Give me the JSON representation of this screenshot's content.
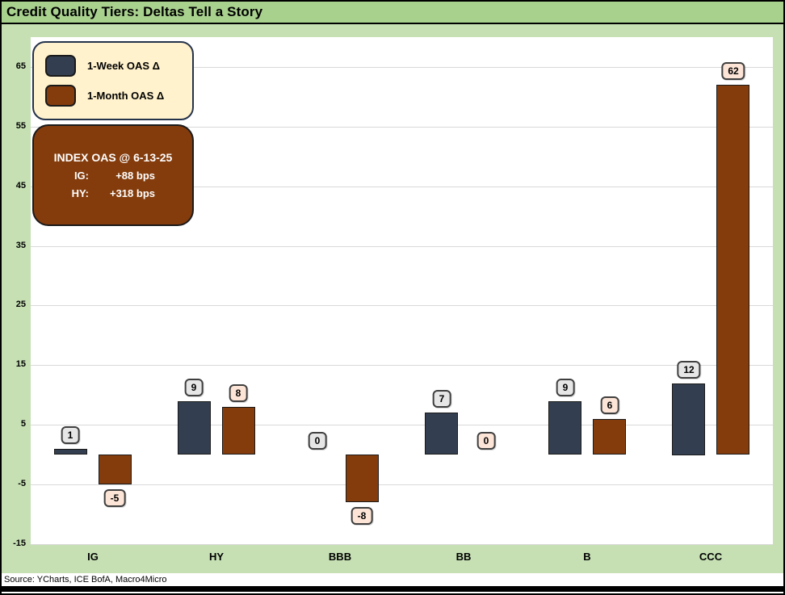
{
  "window": {
    "title": "Credit Quality Tiers: Deltas Tell a Story"
  },
  "legend": {
    "items": [
      {
        "label": "1-Week OAS Δ",
        "color": "#333F50"
      },
      {
        "label": "1-Month OAS Δ",
        "color": "#843C0C"
      }
    ]
  },
  "callout": {
    "header": "INDEX OAS @ 6-13-25",
    "rows": [
      {
        "label": "IG:",
        "value": "+88 bps"
      },
      {
        "label": "HY:",
        "value": "+318 bps"
      }
    ]
  },
  "source": {
    "text": "Source: YCharts, ICE BofA, Macro4Micro"
  },
  "chart_data": {
    "type": "bar",
    "title": "Credit Quality Tiers: Deltas Tell a Story",
    "categories": [
      "IG",
      "HY",
      "BBB",
      "BB",
      "B",
      "CCC"
    ],
    "series": [
      {
        "name": "1-Week OAS Δ",
        "values": [
          1,
          9,
          0,
          7,
          9,
          12
        ],
        "color": "#333F50",
        "label_bg": "#E7E6E6"
      },
      {
        "name": "1-Month OAS Δ",
        "values": [
          -5,
          8,
          -8,
          0,
          6,
          62
        ],
        "color": "#843C0C",
        "label_bg": "#FCE4D6"
      }
    ],
    "xlabel": "",
    "ylabel": "",
    "ylim": [
      -15,
      70
    ],
    "yticks": [
      65,
      55,
      45,
      35,
      25,
      15,
      5,
      -5,
      -15
    ],
    "grid": true,
    "legend_position": "top-left",
    "units": "bps"
  },
  "colors": {
    "titlebar_bg": "#A9D18E",
    "chart_bg": "#C6E0B4",
    "plot_bg": "#FFFFFF",
    "gridline": "#D9D9D9",
    "week_bar": "#333F50",
    "month_bar": "#843C0C",
    "legend_bg": "#FFF2CC",
    "callout_bg": "#843C0C"
  }
}
